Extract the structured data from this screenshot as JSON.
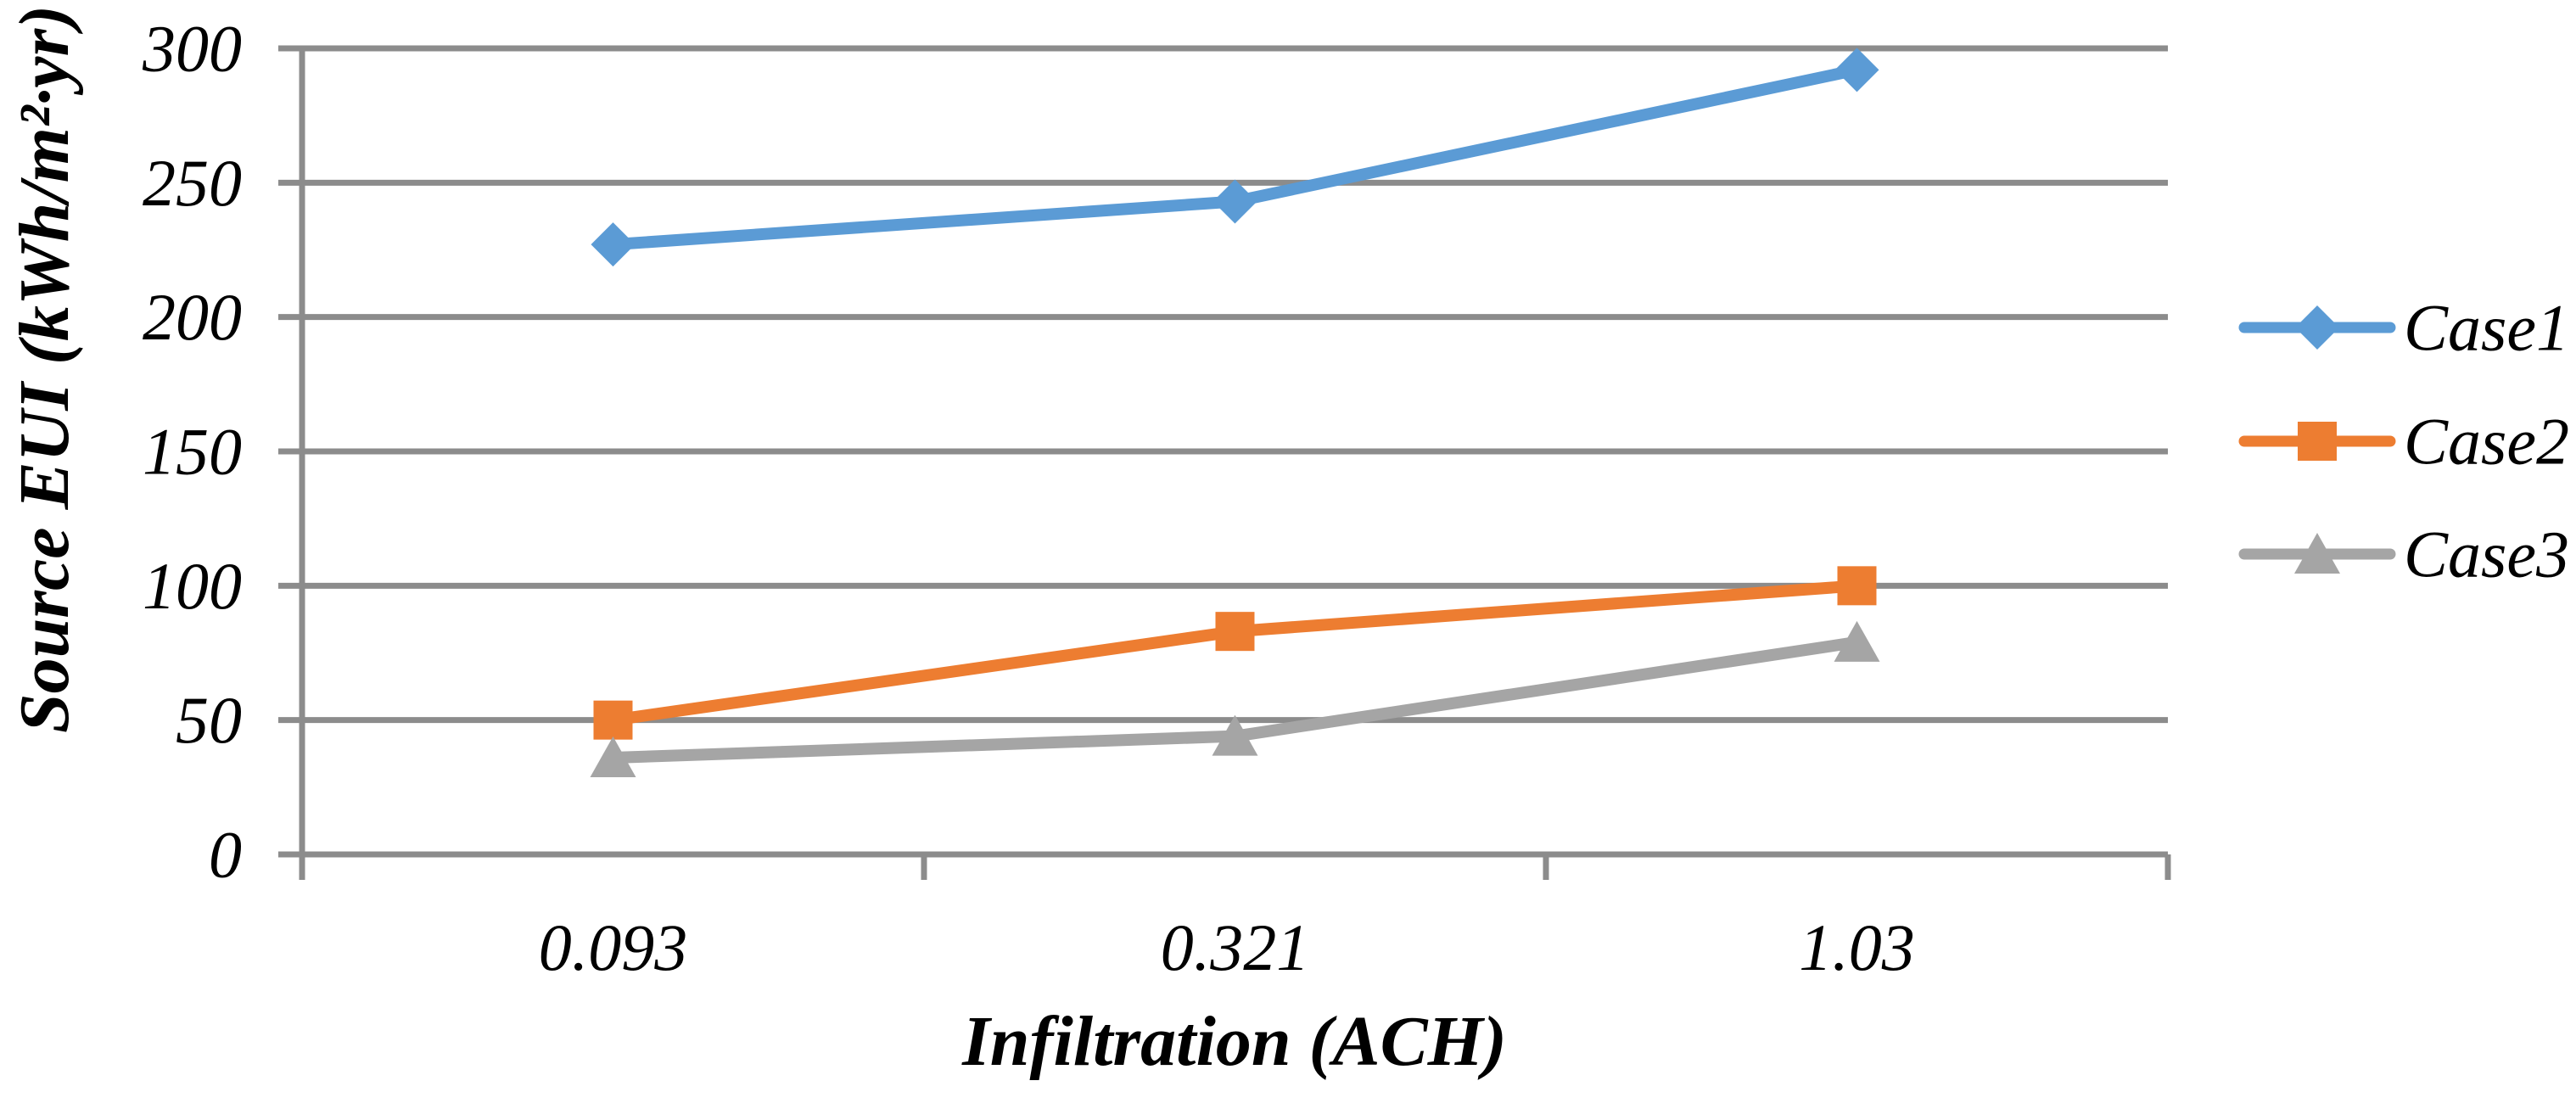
{
  "figure": {
    "background": "#FFFFFF"
  },
  "chart_data": {
    "type": "line",
    "title": "",
    "categories": [
      "0.093",
      "0.321",
      "1.03"
    ],
    "xlabel": "Infiltration (ACH)",
    "ylabel": "Source EUI (kWh/m²·yr)",
    "ylim": [
      0,
      300
    ],
    "ytick_step": 50,
    "yticks": [
      300,
      250,
      200,
      150,
      100,
      50,
      0
    ],
    "grid": true,
    "gridline_color": "#8C8C8C",
    "axis_color": "#8C8C8C",
    "text_color": "#000000",
    "legend_position": "right",
    "series": [
      {
        "name": "Case1",
        "marker": "diamond",
        "color": "#5B9BD5",
        "values": [
          227,
          243,
          292
        ]
      },
      {
        "name": "Case2",
        "marker": "square",
        "color": "#ED7D31",
        "values": [
          50,
          83,
          100
        ]
      },
      {
        "name": "Case3",
        "marker": "triangle",
        "color": "#A5A5A5",
        "values": [
          36,
          44,
          79
        ]
      }
    ]
  }
}
